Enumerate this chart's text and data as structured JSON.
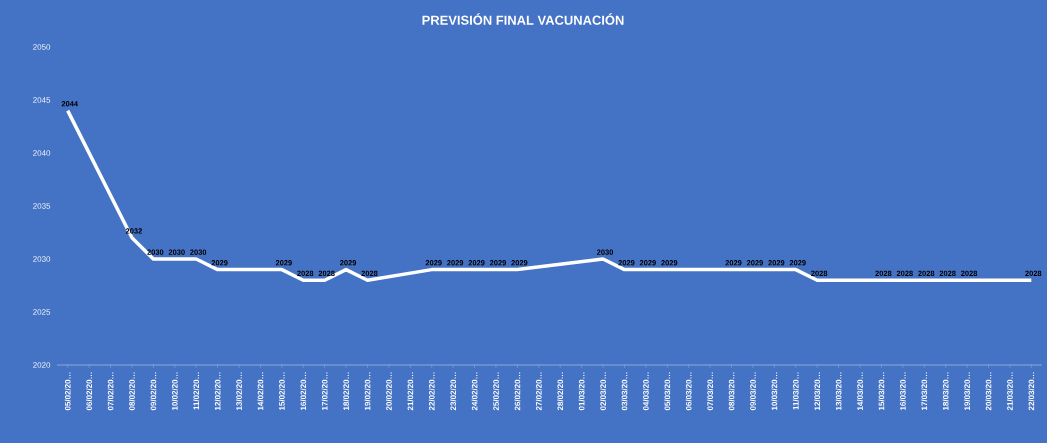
{
  "chart_data": {
    "type": "line",
    "title": "PREVISIÓN FINAL VACUNACIÓN",
    "categories": [
      "05/02/20…",
      "06/02/20…",
      "07/02/20…",
      "08/02/20…",
      "09/02/20…",
      "10/02/20…",
      "11/02/20…",
      "12/02/20…",
      "13/02/20…",
      "14/02/20…",
      "15/02/20…",
      "16/02/20…",
      "17/02/20…",
      "18/02/20…",
      "19/02/20…",
      "20/02/20…",
      "21/02/20…",
      "22/02/20…",
      "23/02/20…",
      "24/02/20…",
      "25/02/20…",
      "26/02/20…",
      "27/02/20…",
      "28/02/20…",
      "01/03/20…",
      "02/03/20…",
      "03/03/20…",
      "04/03/20…",
      "05/03/20…",
      "06/03/20…",
      "07/03/20…",
      "08/03/20…",
      "09/03/20…",
      "10/03/20…",
      "11/03/20…",
      "12/03/20…",
      "13/03/20…",
      "14/03/20…",
      "15/03/20…",
      "16/03/20…",
      "17/03/20…",
      "18/03/20…",
      "19/03/20…",
      "20/03/20…",
      "21/03/20…",
      "22/03/20…"
    ],
    "values": [
      2044,
      null,
      null,
      2032,
      2030,
      2030,
      2030,
      2029,
      null,
      null,
      2029,
      2028,
      2028,
      2029,
      2028,
      null,
      null,
      2029,
      2029,
      2029,
      2029,
      2029,
      null,
      null,
      null,
      2030,
      2029,
      2029,
      2029,
      null,
      null,
      2029,
      2029,
      2029,
      2029,
      2028,
      null,
      null,
      2028,
      2028,
      2028,
      2028,
      2028,
      null,
      null,
      2028
    ],
    "color": "#ffffff",
    "ylim": [
      2020,
      2050
    ],
    "yticks": [
      2020,
      2025,
      2030,
      2035,
      2040,
      2045,
      2050
    ],
    "grid": false,
    "marker": "none",
    "line_style": "solid",
    "data_labels": true
  }
}
